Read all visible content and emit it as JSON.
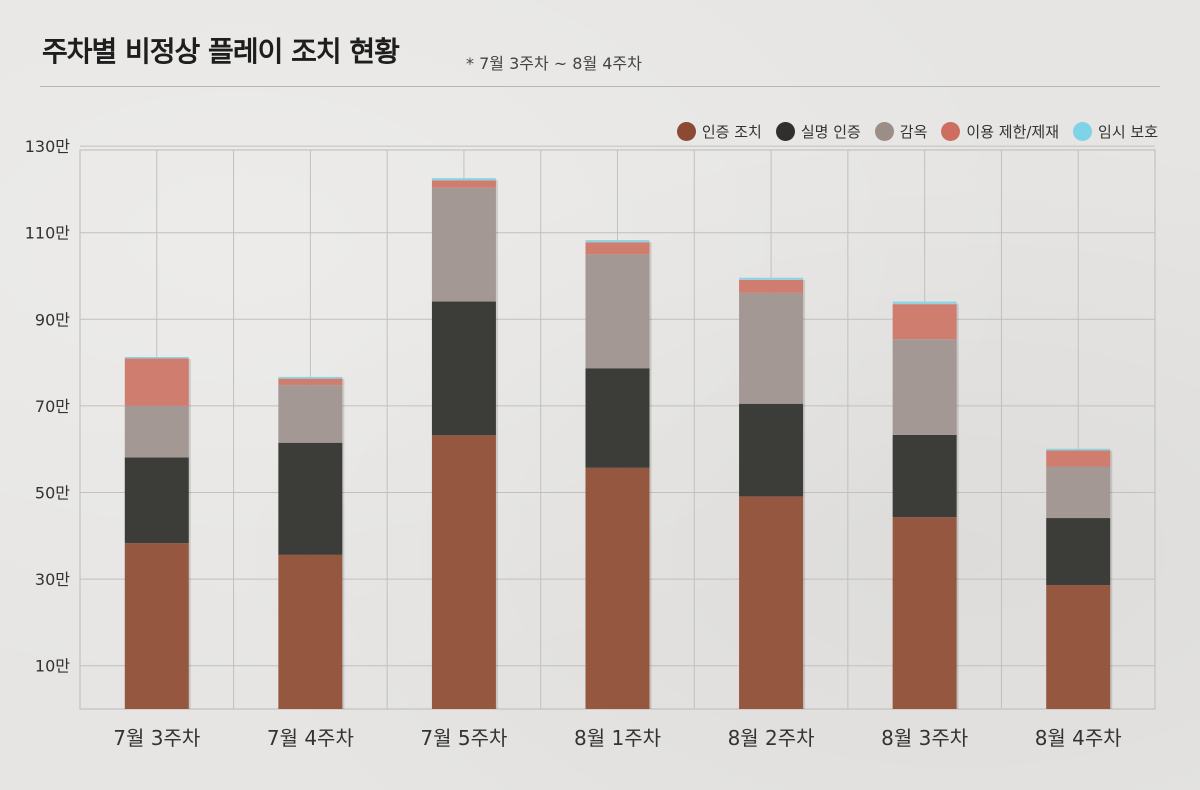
{
  "title": "주차별 비정상 플레이 조치 현황",
  "subtitle": "* 7월 3주차 ~ 8월 4주차",
  "legend": [
    {
      "label": "인증 조치",
      "color": "#8c4a34"
    },
    {
      "label": "실명 인증",
      "color": "#2f2f2d"
    },
    {
      "label": "감옥",
      "color": "#9a8e87"
    },
    {
      "label": "이용 제한/제재",
      "color": "#cd6e60"
    },
    {
      "label": "임시 보호",
      "color": "#7ed3e6"
    }
  ],
  "chart_data": {
    "type": "bar",
    "stacked": true,
    "title": "주차별 비정상 플레이 조치 현황",
    "subtitle": "* 7월 3주차 ~ 8월 4주차",
    "xlabel": "",
    "ylabel": "",
    "ylim": [
      0,
      130
    ],
    "yticks": [
      10,
      30,
      50,
      70,
      90,
      110,
      130
    ],
    "ytick_labels": [
      "10만",
      "30만",
      "50만",
      "70만",
      "90만",
      "110만",
      "130만"
    ],
    "unit": "만",
    "grid": true,
    "legend_position": "top-right",
    "categories": [
      "7월 3주차",
      "7월 4주차",
      "7월 5주차",
      "8월 1주차",
      "8월 2주차",
      "8월 3주차",
      "8월 4주차"
    ],
    "series": [
      {
        "name": "인증 조치",
        "color": "#95573f",
        "values": [
          38.3,
          35.6,
          63.2,
          55.7,
          49.1,
          44.3,
          28.6
        ]
      },
      {
        "name": "실명 인증",
        "color": "#3c3c39",
        "values": [
          19.8,
          25.9,
          30.9,
          23.0,
          21.4,
          19.0,
          15.5
        ]
      },
      {
        "name": "감옥",
        "color": "#a39893",
        "values": [
          11.9,
          13.3,
          26.3,
          26.3,
          25.6,
          22.1,
          11.9
        ]
      },
      {
        "name": "이용 제한/제재",
        "color": "#cf7d6f",
        "values": [
          11.0,
          1.5,
          1.7,
          2.8,
          3.0,
          8.1,
          3.7
        ]
      },
      {
        "name": "임시 보호",
        "color": "#8ed3e1",
        "values": [
          0.3,
          0.4,
          0.5,
          0.5,
          0.5,
          0.6,
          0.4
        ]
      }
    ]
  }
}
